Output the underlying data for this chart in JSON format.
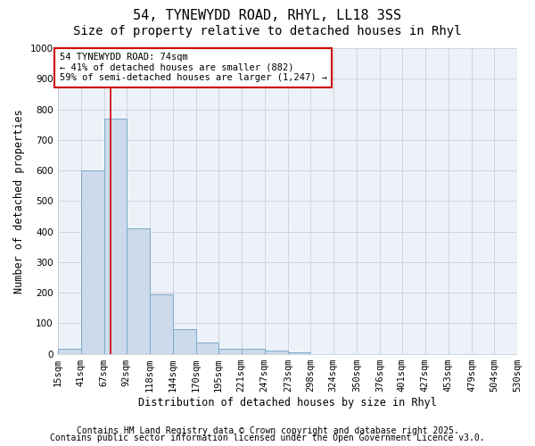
{
  "title1": "54, TYNEWYDD ROAD, RHYL, LL18 3SS",
  "title2": "Size of property relative to detached houses in Rhyl",
  "xlabel": "Distribution of detached houses by size in Rhyl",
  "ylabel": "Number of detached properties",
  "bar_edges": [
    15,
    41,
    67,
    92,
    118,
    144,
    170,
    195,
    221,
    247,
    273,
    298,
    324,
    350,
    376,
    401,
    427,
    453,
    479,
    504,
    530
  ],
  "bar_heights": [
    15,
    600,
    770,
    410,
    195,
    80,
    38,
    15,
    15,
    10,
    5,
    0,
    0,
    0,
    0,
    0,
    0,
    0,
    0,
    0
  ],
  "bar_color": "#ccdaeb",
  "bar_edgecolor": "#7aaac8",
  "red_line_x": 74,
  "annotation_text": "54 TYNEWYDD ROAD: 74sqm\n← 41% of detached houses are smaller (882)\n59% of semi-detached houses are larger (1,247) →",
  "annotation_box_facecolor": "#ffffff",
  "annotation_box_edgecolor": "#cc0000",
  "ylim": [
    0,
    1000
  ],
  "yticks": [
    0,
    100,
    200,
    300,
    400,
    500,
    600,
    700,
    800,
    900,
    1000
  ],
  "tick_labels": [
    "15sqm",
    "41sqm",
    "67sqm",
    "92sqm",
    "118sqm",
    "144sqm",
    "170sqm",
    "195sqm",
    "221sqm",
    "247sqm",
    "273sqm",
    "298sqm",
    "324sqm",
    "350sqm",
    "376sqm",
    "401sqm",
    "427sqm",
    "453sqm",
    "479sqm",
    "504sqm",
    "530sqm"
  ],
  "footer1": "Contains HM Land Registry data © Crown copyright and database right 2025.",
  "footer2": "Contains public sector information licensed under the Open Government Licence v3.0.",
  "plot_bg_color": "#edf2f9",
  "fig_bg_color": "#ffffff",
  "grid_color": "#c8d0dc",
  "title_fontsize": 11,
  "subtitle_fontsize": 10,
  "axis_label_fontsize": 8.5,
  "tick_fontsize": 7.5,
  "annot_fontsize": 7.5,
  "footer_fontsize": 7
}
